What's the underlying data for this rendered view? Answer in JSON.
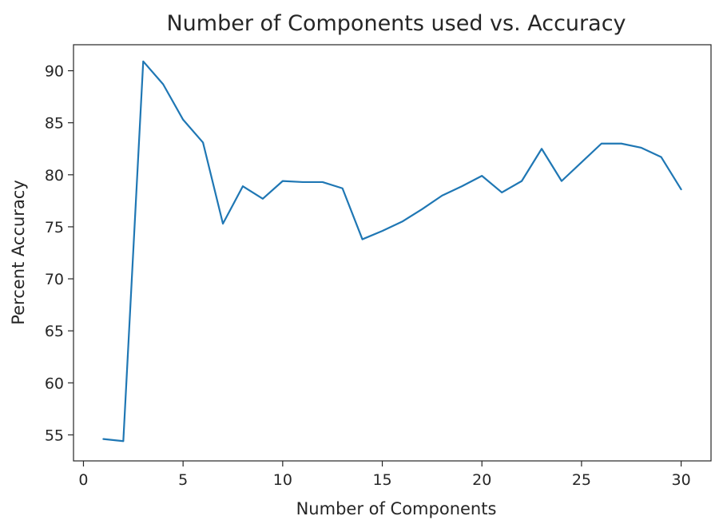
{
  "chart_data": {
    "type": "line",
    "title": "Number of Components used vs. Accuracy",
    "xlabel": "Number of Components",
    "ylabel": "Percent Accuracy",
    "xlim": [
      -0.5,
      31.5
    ],
    "ylim": [
      52.5,
      92.5
    ],
    "xticks": [
      0,
      5,
      10,
      15,
      20,
      25,
      30
    ],
    "yticks": [
      55,
      60,
      65,
      70,
      75,
      80,
      85,
      90
    ],
    "grid": false,
    "series": [
      {
        "color": "#1f77b4",
        "x": [
          1,
          2,
          3,
          4,
          5,
          6,
          7,
          8,
          9,
          10,
          11,
          12,
          13,
          14,
          15,
          16,
          17,
          18,
          19,
          20,
          21,
          22,
          23,
          24,
          25,
          26,
          27,
          28,
          29,
          30
        ],
        "y": [
          54.6,
          54.4,
          90.9,
          88.7,
          85.3,
          83.1,
          75.3,
          78.9,
          77.7,
          79.4,
          79.3,
          79.3,
          78.7,
          73.8,
          74.6,
          75.5,
          76.7,
          78.0,
          78.9,
          79.9,
          78.3,
          79.4,
          82.5,
          79.4,
          81.2,
          83.0,
          83.0,
          82.6,
          81.7,
          78.6
        ]
      }
    ]
  }
}
